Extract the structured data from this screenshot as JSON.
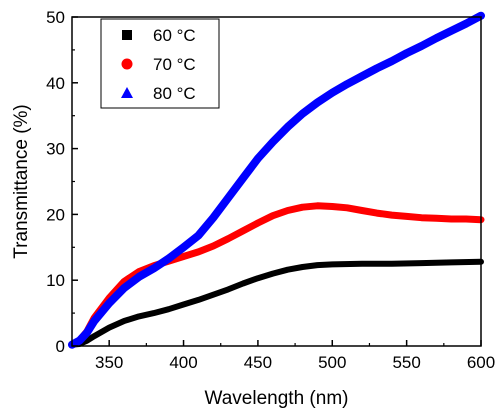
{
  "chart_data": {
    "type": "line",
    "title": "",
    "xlabel": "Wavelength (nm)",
    "ylabel": "Transmittance (%)",
    "xlim": [
      325,
      600
    ],
    "ylim": [
      0,
      50
    ],
    "x_ticks": [
      350,
      400,
      450,
      500,
      550,
      600
    ],
    "y_ticks": [
      0,
      10,
      20,
      30,
      40,
      50
    ],
    "grid": false,
    "legend_position": "top-left",
    "series": [
      {
        "name": "60 °C",
        "color": "#000000",
        "marker": "square",
        "x": [
          325,
          330,
          335,
          340,
          350,
          360,
          370,
          380,
          390,
          400,
          410,
          420,
          430,
          440,
          450,
          460,
          470,
          480,
          490,
          500,
          520,
          540,
          560,
          580,
          600
        ],
        "y": [
          0.2,
          0.3,
          0.8,
          1.5,
          2.8,
          3.8,
          4.5,
          5.0,
          5.6,
          6.3,
          7.0,
          7.8,
          8.6,
          9.5,
          10.3,
          11.0,
          11.6,
          12.0,
          12.3,
          12.4,
          12.5,
          12.5,
          12.6,
          12.7,
          12.8
        ]
      },
      {
        "name": "70 °C",
        "color": "#ff0000",
        "marker": "circle",
        "x": [
          325,
          330,
          335,
          340,
          350,
          360,
          370,
          380,
          390,
          400,
          410,
          420,
          430,
          440,
          450,
          460,
          470,
          480,
          490,
          500,
          510,
          520,
          530,
          540,
          550,
          560,
          570,
          580,
          590,
          600
        ],
        "y": [
          0.2,
          0.8,
          2.2,
          4.3,
          7.3,
          9.8,
          11.3,
          12.2,
          12.9,
          13.6,
          14.3,
          15.2,
          16.3,
          17.5,
          18.7,
          19.8,
          20.6,
          21.1,
          21.3,
          21.2,
          21.0,
          20.6,
          20.2,
          19.9,
          19.7,
          19.5,
          19.4,
          19.3,
          19.3,
          19.2
        ]
      },
      {
        "name": "80 °C",
        "color": "#0000ff",
        "marker": "triangle",
        "x": [
          325,
          330,
          335,
          340,
          350,
          360,
          370,
          380,
          390,
          400,
          410,
          420,
          430,
          440,
          450,
          460,
          470,
          480,
          490,
          500,
          510,
          520,
          530,
          540,
          550,
          560,
          570,
          580,
          590,
          600
        ],
        "y": [
          0.2,
          0.8,
          2.0,
          3.8,
          6.5,
          8.8,
          10.5,
          11.8,
          13.3,
          15.0,
          16.8,
          19.5,
          22.5,
          25.5,
          28.5,
          31.0,
          33.3,
          35.3,
          37.0,
          38.5,
          39.8,
          41.0,
          42.2,
          43.3,
          44.5,
          45.6,
          46.8,
          47.9,
          49.0,
          50.2
        ]
      }
    ]
  }
}
